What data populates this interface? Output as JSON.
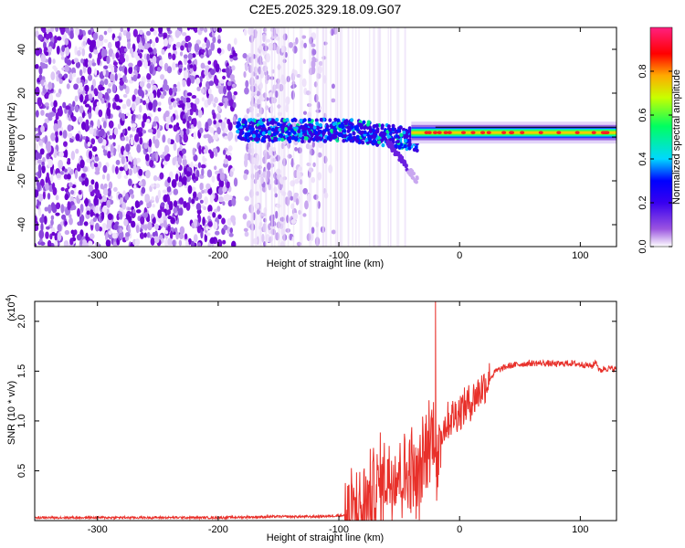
{
  "figure_title": "C2E5.2025.329.18.09.G07",
  "colors": {
    "axis": "#000000",
    "snr_line": "#e8302a",
    "background": "#ffffff"
  },
  "chart_data": [
    {
      "type": "heatmap",
      "name": "spectrogram",
      "xlabel": "Height of straight line (km)",
      "ylabel": "Frequency (Hz)",
      "xlim": [
        -352,
        130
      ],
      "ylim": [
        -50,
        50
      ],
      "xticks": [
        -300,
        -200,
        -100,
        0,
        100
      ],
      "xtick_labels": [
        "-300",
        "-200",
        "-100",
        "0",
        "100"
      ],
      "yticks": [
        -40,
        -20,
        0,
        20,
        40
      ],
      "ytick_labels": [
        "-40",
        "-20",
        "0",
        "20",
        "40"
      ],
      "colorbar": {
        "label": "Normalized spectral amplitude",
        "range": [
          0,
          1
        ],
        "ticks": [
          0.0,
          0.2,
          0.4,
          0.6,
          0.8
        ],
        "tick_labels": [
          "0.0",
          "0.2",
          "0.4",
          "0.6",
          "0.8"
        ],
        "colormap": [
          "#ffffff",
          "#7a00d6",
          "#0000ff",
          "#00ffff",
          "#00ff00",
          "#ffff00",
          "#ff0000",
          "#ff00ff"
        ]
      },
      "description_regions": [
        {
          "x_range": [
            -352,
            -185
          ],
          "content": "scattered noise",
          "level": 0.1
        },
        {
          "x_range": [
            -185,
            -40
          ],
          "content": "signal band with noise",
          "freq_center": 3,
          "level": 0.3
        },
        {
          "x_range": [
            -40,
            130
          ],
          "content": "strong carrier",
          "freq_center": 2,
          "level": 0.8
        }
      ]
    },
    {
      "type": "line",
      "name": "snr",
      "xlabel": "Height of straight line (km)",
      "ylabel": "SNR (10 * v/v)",
      "y_multiplier_label": "(x10",
      "y_multiplier_exp": "4",
      "y_multiplier_close": ")",
      "xlim": [
        -352,
        130
      ],
      "ylim": [
        0,
        2.2
      ],
      "xticks": [
        -300,
        -200,
        -100,
        0,
        100
      ],
      "xtick_labels": [
        "-300",
        "-200",
        "-100",
        "0",
        "100"
      ],
      "yticks": [
        0.5,
        1.0,
        1.5,
        2.0
      ],
      "ytick_labels": [
        "0.5",
        "1.0",
        "1.5",
        "2.0"
      ],
      "series": [
        {
          "name": "SNR",
          "x": [
            -352,
            -300,
            -250,
            -200,
            -150,
            -120,
            -100,
            -90,
            -80,
            -70,
            -60,
            -50,
            -45,
            -40,
            -35,
            -30,
            -25,
            -20,
            -18,
            -15,
            -10,
            -5,
            0,
            10,
            20,
            30,
            40,
            50,
            60,
            70,
            80,
            90,
            100,
            105,
            110,
            113,
            116,
            120,
            130
          ],
          "y": [
            0.03,
            0.03,
            0.03,
            0.03,
            0.04,
            0.04,
            0.05,
            0.06,
            0.12,
            0.3,
            0.45,
            0.5,
            0.45,
            0.55,
            0.35,
            0.6,
            0.8,
            0.95,
            0.4,
            0.9,
            1.0,
            1.05,
            1.1,
            1.2,
            1.35,
            1.5,
            1.55,
            1.57,
            1.58,
            1.58,
            1.57,
            1.58,
            1.57,
            1.56,
            1.55,
            1.6,
            1.5,
            1.53,
            1.52
          ]
        }
      ]
    }
  ]
}
